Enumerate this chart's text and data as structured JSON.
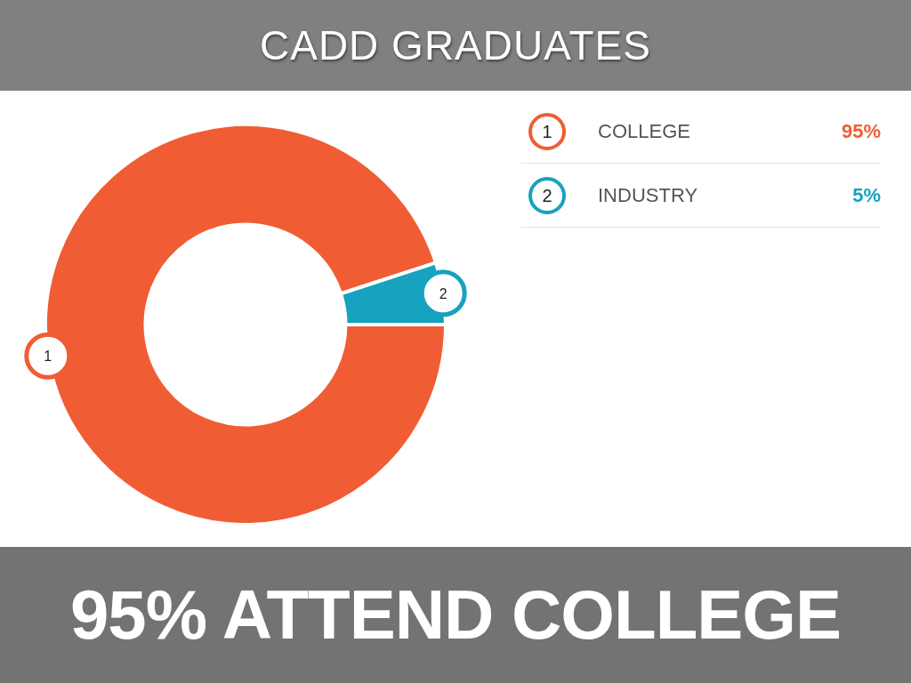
{
  "chart_data": {
    "type": "donut",
    "title": "CADD GRADUATES",
    "categories": [
      "COLLEGE",
      "INDUSTRY"
    ],
    "values": [
      95,
      5
    ],
    "value_labels": [
      "95%",
      "5%"
    ],
    "colors": [
      "#f05d34",
      "#17a2bf"
    ],
    "legend": "top right",
    "annotations": [
      {
        "text": "1",
        "x": "COLLEGE"
      },
      {
        "text": "2",
        "x": "INDUSTRY"
      },
      "95% ATTEND COLLEGE"
    ]
  }
}
